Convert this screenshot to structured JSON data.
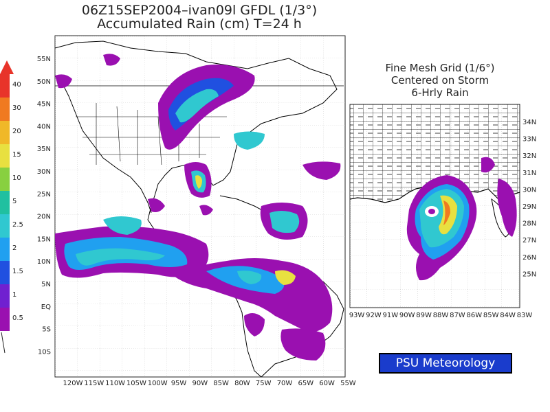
{
  "title_line1": "06Z15SEP2004–ivan09l GFDL (1/3°)",
  "title_line2": "Accumulated Rain (cm) T=24 h",
  "inset": {
    "line1": "Fine Mesh Grid (1/6°)",
    "line2": "Centered on Storm",
    "line3": "6-Hrly Rain",
    "lat_labels": [
      "34N",
      "33N",
      "32N",
      "31N",
      "30N",
      "29N",
      "28N",
      "27N",
      "26N",
      "25N"
    ],
    "lon_labels": [
      "93W",
      "92W",
      "91W",
      "90W",
      "89W",
      "88W",
      "87W",
      "86W",
      "85W",
      "84W",
      "83W"
    ]
  },
  "main_map": {
    "lat_labels": [
      "55N",
      "50N",
      "45N",
      "40N",
      "35N",
      "30N",
      "25N",
      "20N",
      "15N",
      "10N",
      "5N",
      "EQ",
      "5S",
      "10S"
    ],
    "lon_labels": [
      "120W",
      "115W",
      "110W",
      "105W",
      "100W",
      "95W",
      "90W",
      "85W",
      "80W",
      "75W",
      "70W",
      "65W",
      "60W",
      "55W"
    ]
  },
  "colorbar": {
    "labels": [
      "40",
      "30",
      "20",
      "15",
      "10",
      "5",
      "2.5",
      "2",
      "1.5",
      "1",
      "0.5"
    ],
    "colors": [
      "#e8342a",
      "#f07a20",
      "#f0b828",
      "#e8e040",
      "#88d040",
      "#20c0a0",
      "#30c8d0",
      "#20a0f0",
      "#2050e0",
      "#7020d0",
      "#9a10b0"
    ]
  },
  "footer": {
    "logo_text": "PSU Meteorology"
  }
}
